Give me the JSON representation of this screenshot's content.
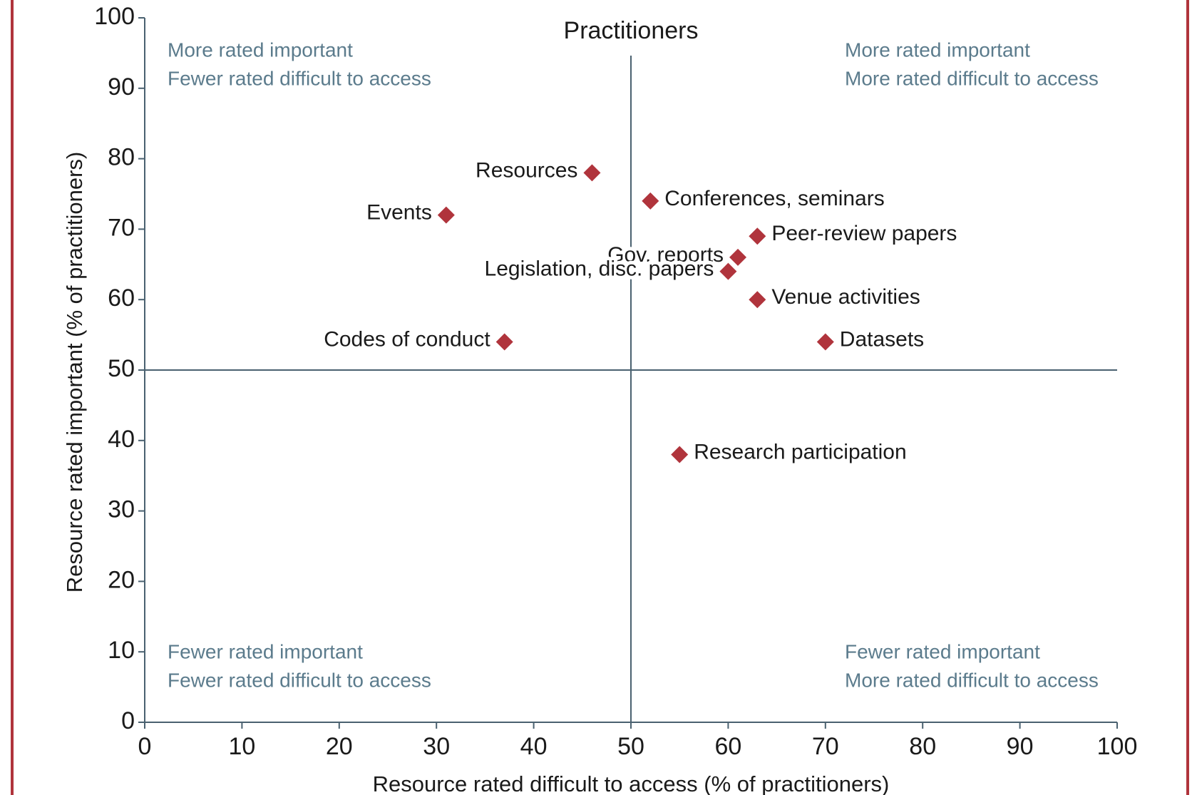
{
  "chart_data": {
    "type": "scatter",
    "title": "Practitioners",
    "x_label": "Resource rated difficult to access (% of practitioners)",
    "y_label": "Resource rated important (% of practitioners)",
    "xlim": [
      0,
      100
    ],
    "ylim": [
      0,
      100
    ],
    "xticks": [
      0,
      10,
      20,
      30,
      40,
      50,
      60,
      70,
      80,
      90,
      100
    ],
    "yticks": [
      0,
      10,
      20,
      30,
      40,
      50,
      60,
      70,
      80,
      90,
      100
    ],
    "color": "#b0343c",
    "dividers": {
      "x": 50,
      "y": 50
    },
    "points": [
      {
        "label": "Resources",
        "x": 46,
        "y": 78,
        "label_side": "left"
      },
      {
        "label": "Events",
        "x": 31,
        "y": 72,
        "label_side": "left"
      },
      {
        "label": "Conferences, seminars",
        "x": 52,
        "y": 74,
        "label_side": "right"
      },
      {
        "label": "Peer-review papers",
        "x": 63,
        "y": 69,
        "label_side": "right"
      },
      {
        "label": "Gov. reports",
        "x": 61,
        "y": 66,
        "label_side": "left"
      },
      {
        "label": "Legislation, disc. papers",
        "x": 60,
        "y": 64,
        "label_side": "left"
      },
      {
        "label": "Venue activities",
        "x": 63,
        "y": 60,
        "label_side": "right"
      },
      {
        "label": "Codes of conduct",
        "x": 37,
        "y": 54,
        "label_side": "left"
      },
      {
        "label": "Datasets",
        "x": 70,
        "y": 54,
        "label_side": "right"
      },
      {
        "label": "Research participation",
        "x": 55,
        "y": 38,
        "label_side": "right"
      }
    ],
    "quadrant_labels": {
      "top_left": [
        "More rated important",
        "Fewer rated difficult to access"
      ],
      "top_right": [
        "More rated important",
        "More rated difficult to access"
      ],
      "bottom_left": [
        "Fewer rated important",
        "Fewer rated difficult to access"
      ],
      "bottom_right": [
        "Fewer rated important",
        "More rated difficult to access"
      ]
    }
  }
}
